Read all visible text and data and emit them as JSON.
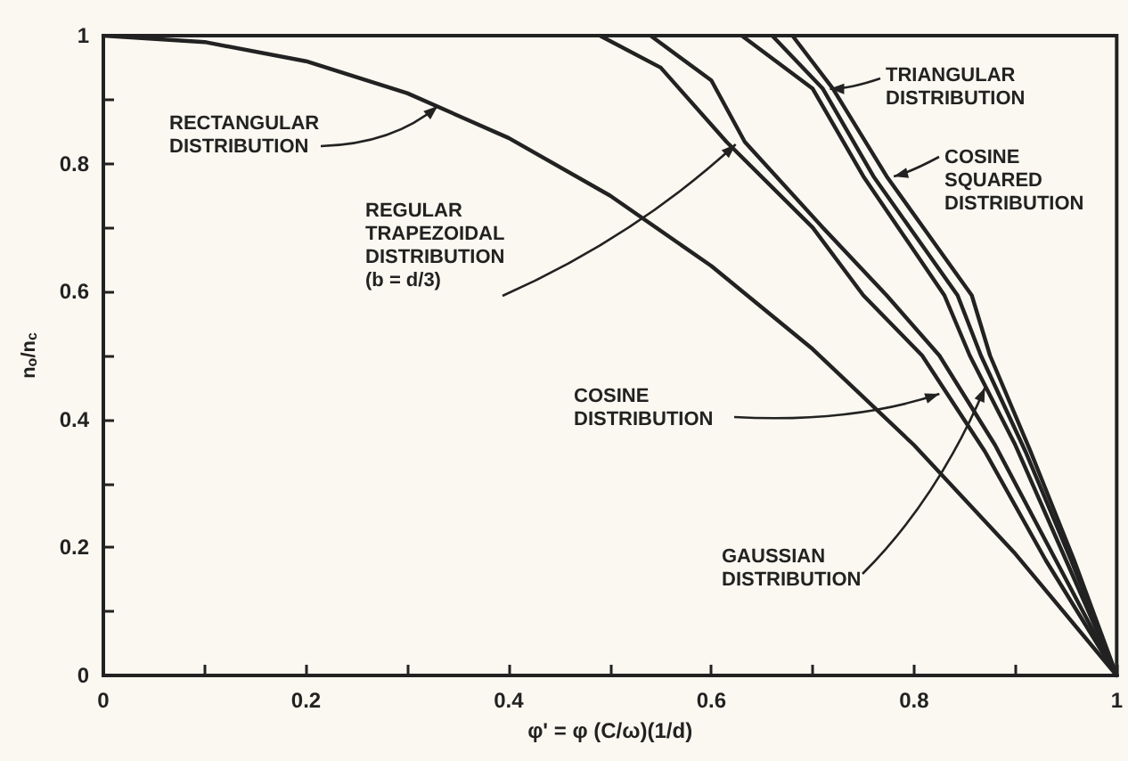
{
  "chart_data": {
    "type": "line",
    "xlabel": "φ' = φ (C/ω)(1/d)",
    "ylabel": "n$_{o}$/n$_{c}$",
    "xlim": [
      0,
      1
    ],
    "ylim": [
      0,
      1
    ],
    "xticks": [
      0,
      {
        "value": 0.1,
        "label": null
      },
      0.2,
      {
        "value": 0.3,
        "label": null
      },
      0.4,
      {
        "value": 0.5,
        "label": null
      },
      0.6,
      {
        "value": 0.7,
        "label": null
      },
      0.8,
      {
        "value": 0.9,
        "label": null
      },
      1
    ],
    "yticks": [
      0,
      {
        "value": 0.1,
        "label": null
      },
      0.2,
      {
        "value": 0.3,
        "label": null
      },
      0.4,
      {
        "value": 0.5,
        "label": null
      },
      0.6,
      {
        "value": 0.7,
        "label": null
      },
      0.8,
      {
        "value": 0.9,
        "label": null
      },
      1
    ],
    "grid": false,
    "marker": "none",
    "line_style": "solid",
    "series": [
      {
        "color": "#222222",
        "x": [
          0,
          0.1,
          0.2,
          0.3,
          0.4,
          0.5,
          0.6,
          0.7,
          0.8,
          0.9,
          1
        ],
        "values": [
          1,
          0.99,
          0.96,
          0.91,
          0.84,
          0.75,
          0.64,
          0.51,
          0.36,
          0.19,
          0
        ]
      },
      {
        "color": "#222222",
        "x": [
          0.49,
          0.55,
          0.615,
          0.7,
          0.75,
          0.808,
          0.87,
          0.93,
          1
        ],
        "values": [
          1,
          0.95,
          0.834,
          0.7,
          0.594,
          0.5,
          0.35,
          0.18,
          0
        ]
      },
      {
        "color": "#222222",
        "x": [
          0.54,
          0.6,
          0.633,
          0.71,
          0.773,
          0.825,
          0.88,
          0.94,
          1
        ],
        "values": [
          1,
          0.93,
          0.834,
          0.7,
          0.594,
          0.5,
          0.36,
          0.18,
          0
        ]
      },
      {
        "color": "#222222",
        "x": [
          0.63,
          0.7,
          0.75,
          0.83,
          0.855,
          0.9,
          0.95,
          1
        ],
        "values": [
          1,
          0.917,
          0.78,
          0.594,
          0.5,
          0.36,
          0.18,
          0
        ]
      },
      {
        "color": "#222222",
        "x": [
          0.66,
          0.71,
          0.76,
          0.843,
          0.866,
          0.91,
          0.955,
          1
        ],
        "values": [
          1,
          0.917,
          0.78,
          0.594,
          0.5,
          0.35,
          0.18,
          0
        ]
      },
      {
        "color": "#222222",
        "x": [
          0.68,
          0.72,
          0.773,
          0.857,
          0.875,
          0.915,
          0.958,
          1
        ],
        "values": [
          1,
          0.917,
          0.78,
          0.594,
          0.5,
          0.35,
          0.18,
          0
        ]
      }
    ],
    "annotations": [
      {
        "text": "RECTANGULAR\nDISTRIBUTION",
        "x": 0.33,
        "y": 0.89
      },
      {
        "text": "REGULAR\nTRAPEZOIDAL\nDISTRIBUTION\n(b = d/3)",
        "x": 0.624,
        "y": 0.83
      },
      {
        "text": "COSINE\nDISTRIBUTION",
        "x": 0.825,
        "y": 0.44
      },
      {
        "text": "GAUSSIAN\nDISTRIBUTION",
        "x": 0.87,
        "y": 0.45
      },
      {
        "text": "TRIANGULAR\nDISTRIBUTION",
        "x": 0.717,
        "y": 0.917
      },
      {
        "text": "COSINE\nSQUARED\nDISTRIBUTION",
        "x": 0.78,
        "y": 0.78
      }
    ]
  }
}
